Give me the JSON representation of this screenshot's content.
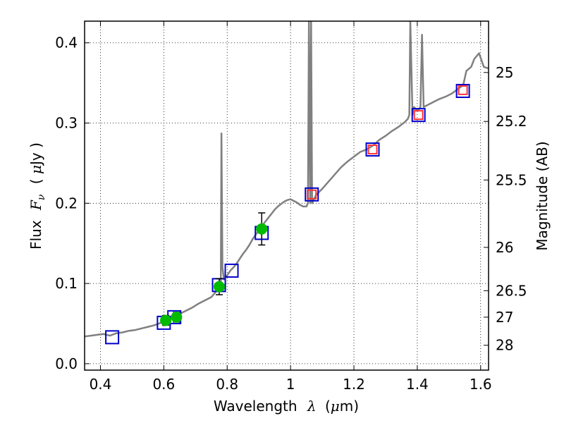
{
  "chart_data": {
    "type": "scatter",
    "xlabel": {
      "prefix": "Wavelength",
      "symbol": "λ",
      "unit_open": "(",
      "unit_mu": "μ",
      "unit_rest": "m)"
    },
    "ylabel": {
      "prefix": "Flux",
      "symbol": "F",
      "subscript": "ν",
      "unit_open": "( ",
      "unit_mu": "μ",
      "unit_rest": "Jy )"
    },
    "y2label": "Magnitude (AB)",
    "xlim": [
      0.35,
      1.625
    ],
    "ylim": [
      -0.008,
      0.427
    ],
    "xticks": [
      {
        "value": 0.4,
        "label": "0.4"
      },
      {
        "value": 0.6,
        "label": "0.6"
      },
      {
        "value": 0.8,
        "label": "0.8"
      },
      {
        "value": 1.0,
        "label": "1"
      },
      {
        "value": 1.2,
        "label": "1.2"
      },
      {
        "value": 1.4,
        "label": "1.4"
      },
      {
        "value": 1.6,
        "label": "1.6"
      }
    ],
    "yticks": [
      {
        "value": 0.0,
        "label": "0.0"
      },
      {
        "value": 0.1,
        "label": "0.1"
      },
      {
        "value": 0.2,
        "label": "0.2"
      },
      {
        "value": 0.3,
        "label": "0.3"
      },
      {
        "value": 0.4,
        "label": "0.4"
      }
    ],
    "y2ticks": [
      {
        "flux": 0.363,
        "label": "25"
      },
      {
        "flux": 0.302,
        "label": "25.2"
      },
      {
        "flux": 0.229,
        "label": "25.5"
      },
      {
        "flux": 0.145,
        "label": "26"
      },
      {
        "flux": 0.091,
        "label": "26.5"
      },
      {
        "flux": 0.058,
        "label": "27"
      },
      {
        "flux": 0.023,
        "label": "28"
      }
    ],
    "grid": true,
    "series": [
      {
        "kind": "line",
        "color": "#808080",
        "points": [
          [
            0.35,
            0.034
          ],
          [
            0.37,
            0.035
          ],
          [
            0.39,
            0.036
          ],
          [
            0.41,
            0.037
          ],
          [
            0.43,
            0.035
          ],
          [
            0.45,
            0.038
          ],
          [
            0.47,
            0.039
          ],
          [
            0.49,
            0.041
          ],
          [
            0.51,
            0.042
          ],
          [
            0.53,
            0.044
          ],
          [
            0.55,
            0.046
          ],
          [
            0.57,
            0.048
          ],
          [
            0.59,
            0.051
          ],
          [
            0.61,
            0.054
          ],
          [
            0.63,
            0.058
          ],
          [
            0.65,
            0.062
          ],
          [
            0.67,
            0.066
          ],
          [
            0.69,
            0.07
          ],
          [
            0.71,
            0.075
          ],
          [
            0.73,
            0.079
          ],
          [
            0.75,
            0.083
          ],
          [
            0.765,
            0.09
          ],
          [
            0.775,
            0.095
          ],
          [
            0.78,
            0.1
          ],
          [
            0.782,
            0.287
          ],
          [
            0.785,
            0.12
          ],
          [
            0.79,
            0.105
          ],
          [
            0.8,
            0.11
          ],
          [
            0.81,
            0.116
          ],
          [
            0.82,
            0.12
          ],
          [
            0.83,
            0.125
          ],
          [
            0.84,
            0.131
          ],
          [
            0.85,
            0.137
          ],
          [
            0.86,
            0.142
          ],
          [
            0.87,
            0.148
          ],
          [
            0.88,
            0.155
          ],
          [
            0.89,
            0.161
          ],
          [
            0.9,
            0.166
          ],
          [
            0.91,
            0.172
          ],
          [
            0.92,
            0.177
          ],
          [
            0.93,
            0.182
          ],
          [
            0.94,
            0.187
          ],
          [
            0.95,
            0.192
          ],
          [
            0.96,
            0.196
          ],
          [
            0.97,
            0.199
          ],
          [
            0.98,
            0.202
          ],
          [
            0.99,
            0.204
          ],
          [
            1.0,
            0.205
          ],
          [
            1.01,
            0.203
          ],
          [
            1.02,
            0.201
          ],
          [
            1.03,
            0.198
          ],
          [
            1.04,
            0.196
          ],
          [
            1.05,
            0.196
          ],
          [
            1.055,
            0.2
          ],
          [
            1.058,
            0.427
          ],
          [
            1.062,
            0.2
          ],
          [
            1.065,
            0.427
          ],
          [
            1.068,
            0.2
          ],
          [
            1.08,
            0.21
          ],
          [
            1.1,
            0.218
          ],
          [
            1.12,
            0.227
          ],
          [
            1.14,
            0.236
          ],
          [
            1.16,
            0.245
          ],
          [
            1.18,
            0.252
          ],
          [
            1.2,
            0.258
          ],
          [
            1.22,
            0.264
          ],
          [
            1.24,
            0.267
          ],
          [
            1.26,
            0.272
          ],
          [
            1.28,
            0.279
          ],
          [
            1.3,
            0.284
          ],
          [
            1.32,
            0.29
          ],
          [
            1.34,
            0.295
          ],
          [
            1.36,
            0.301
          ],
          [
            1.37,
            0.305
          ],
          [
            1.375,
            0.31
          ],
          [
            1.378,
            0.427
          ],
          [
            1.385,
            0.31
          ],
          [
            1.39,
            0.32
          ],
          [
            1.4,
            0.315
          ],
          [
            1.41,
            0.32
          ],
          [
            1.415,
            0.41
          ],
          [
            1.42,
            0.32
          ],
          [
            1.43,
            0.322
          ],
          [
            1.45,
            0.326
          ],
          [
            1.47,
            0.33
          ],
          [
            1.49,
            0.333
          ],
          [
            1.51,
            0.337
          ],
          [
            1.52,
            0.34
          ],
          [
            1.53,
            0.343
          ],
          [
            1.545,
            0.347
          ],
          [
            1.555,
            0.365
          ],
          [
            1.57,
            0.37
          ],
          [
            1.58,
            0.38
          ],
          [
            1.595,
            0.387
          ],
          [
            1.61,
            0.37
          ],
          [
            1.625,
            0.368
          ]
        ]
      },
      {
        "kind": "square",
        "color": "#0000cc",
        "points": [
          [
            0.437,
            0.033
          ],
          [
            0.6,
            0.051
          ],
          [
            0.633,
            0.058
          ],
          [
            0.774,
            0.098
          ],
          [
            0.814,
            0.116
          ],
          [
            0.909,
            0.163
          ],
          [
            1.067,
            0.211
          ],
          [
            1.259,
            0.267
          ],
          [
            1.404,
            0.31
          ],
          [
            1.544,
            0.34
          ]
        ]
      },
      {
        "kind": "square",
        "color": "#ff3333",
        "points": [
          [
            1.067,
            0.211
          ],
          [
            1.259,
            0.267
          ],
          [
            1.404,
            0.31
          ],
          [
            1.544,
            0.341
          ]
        ]
      },
      {
        "kind": "circle",
        "color": "#00bb00",
        "points": [
          {
            "x": 0.606,
            "y": 0.054,
            "err": 0.006
          },
          {
            "x": 0.64,
            "y": 0.058,
            "err": 0.006
          },
          {
            "x": 0.775,
            "y": 0.096,
            "err": 0.01
          },
          {
            "x": 0.909,
            "y": 0.168,
            "err": 0.02
          }
        ]
      }
    ]
  }
}
